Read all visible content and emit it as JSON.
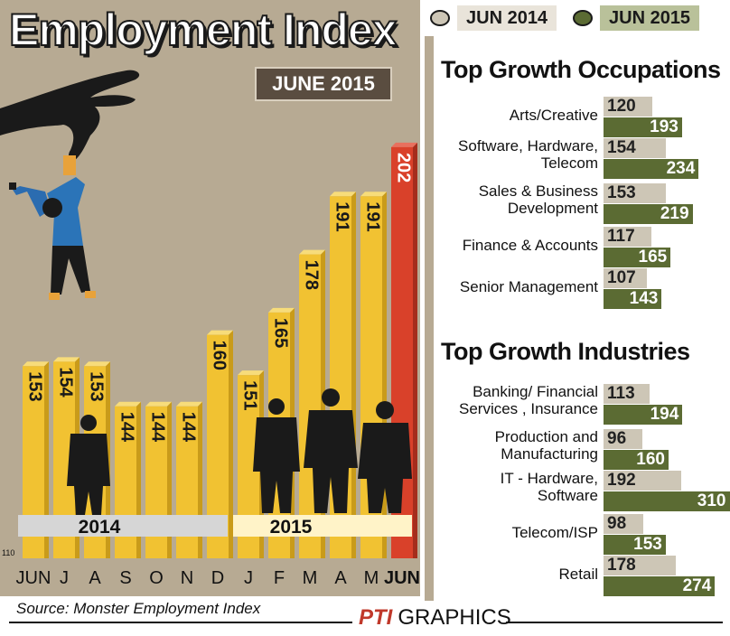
{
  "header": {
    "title": "Employment Index",
    "subtitle": "JUNE 2015",
    "legend": [
      {
        "label": "JUN 2014",
        "color": "#cdc6b6"
      },
      {
        "label": "JUN 2015",
        "color": "#5b6b33"
      }
    ]
  },
  "colors": {
    "panel": "#b7aa93",
    "bar": "#f1c232",
    "bar_highlight": "#d9412a",
    "bar_2014": "#cdc6b6",
    "bar_2015": "#5b6b33"
  },
  "chart_data": [
    {
      "type": "bar",
      "title": "Employment Index",
      "subtitle": "JUNE 2015",
      "categories": [
        "JUN",
        "J",
        "A",
        "S",
        "O",
        "N",
        "D",
        "J",
        "F",
        "M",
        "A",
        "M",
        "JUN"
      ],
      "values": [
        153,
        154,
        153,
        144,
        144,
        144,
        160,
        151,
        165,
        178,
        191,
        191,
        202
      ],
      "year_groups": [
        {
          "label": "2014",
          "from": 0,
          "to": 6
        },
        {
          "label": "2015",
          "from": 7,
          "to": 12
        }
      ],
      "highlight_index": 12,
      "ylim": [
        110,
        205
      ],
      "axis_min_label": "110",
      "grid": false
    },
    {
      "type": "bar",
      "orientation": "horizontal",
      "title": "Top Growth Occupations",
      "categories": [
        "Arts/Creative",
        "Software, Hardware, Telecom",
        "Sales & Business Development",
        "Finance & Accounts",
        "Senior Management"
      ],
      "series": [
        {
          "name": "JUN 2014",
          "values": [
            120,
            154,
            153,
            117,
            107
          ]
        },
        {
          "name": "JUN 2015",
          "values": [
            193,
            234,
            219,
            165,
            143
          ]
        }
      ]
    },
    {
      "type": "bar",
      "orientation": "horizontal",
      "title": "Top Growth Industries",
      "categories": [
        "Banking/ Financial Services , Insurance",
        "Production and Manufacturing",
        "IT - Hardware, Software",
        "Telecom/ISP",
        "Retail"
      ],
      "series": [
        {
          "name": "JUN 2014",
          "values": [
            113,
            96,
            192,
            98,
            178
          ]
        },
        {
          "name": "JUN 2015",
          "values": [
            194,
            160,
            310,
            153,
            274
          ]
        }
      ]
    }
  ],
  "occupations": {
    "title": "Top Growth Occupations",
    "rows": [
      {
        "lines": [
          "Arts/Creative"
        ],
        "v2014": "120",
        "v2015": "193"
      },
      {
        "lines": [
          "Software, Hardware,",
          "Telecom"
        ],
        "v2014": "154",
        "v2015": "234"
      },
      {
        "lines": [
          "Sales & Business",
          "Development"
        ],
        "v2014": "153",
        "v2015": "219"
      },
      {
        "lines": [
          "Finance & Accounts"
        ],
        "v2014": "117",
        "v2015": "165"
      },
      {
        "lines": [
          "Senior Management"
        ],
        "v2014": "107",
        "v2015": "143"
      }
    ]
  },
  "industries": {
    "title": "Top Growth Industries",
    "rows": [
      {
        "lines": [
          "Banking/ Financial",
          "Services , Insurance"
        ],
        "v2014": "113",
        "v2015": "194"
      },
      {
        "lines": [
          "Production and",
          "Manufacturing"
        ],
        "v2014": "96",
        "v2015": "160"
      },
      {
        "lines": [
          "IT - Hardware,",
          "Software"
        ],
        "v2014": "192",
        "v2015": "310"
      },
      {
        "lines": [
          "Telecom/ISP"
        ],
        "v2014": "98",
        "v2015": "153"
      },
      {
        "lines": [
          "Retail"
        ],
        "v2014": "178",
        "v2015": "274"
      }
    ]
  },
  "footer": {
    "source": "Source: Monster Employment Index",
    "brand_logo": "PTI",
    "brand_text": "GRAPHICS"
  },
  "illustrations": [
    "hand-icon",
    "hanging-person-icon",
    "businessman-silhouette-icon"
  ]
}
